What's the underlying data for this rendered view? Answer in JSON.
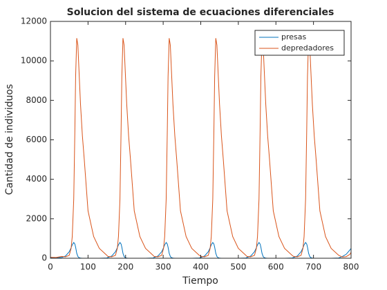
{
  "chart_data": {
    "type": "line",
    "title": "Solucion del sistema de ecuaciones diferenciales",
    "xlabel": "Tiempo",
    "ylabel": "Cantidad de individuos",
    "x": [
      0,
      15,
      30,
      40,
      50,
      55,
      58,
      62,
      65,
      67,
      70,
      73,
      76,
      80,
      85,
      90,
      100,
      115,
      130,
      150,
      153,
      163,
      173,
      178,
      181,
      185,
      188,
      190,
      193,
      196,
      199,
      203,
      208,
      213,
      223,
      238,
      253,
      273,
      276,
      286,
      296,
      301,
      304,
      308,
      311,
      313,
      316,
      319,
      322,
      326,
      331,
      336,
      346,
      361,
      376,
      396,
      400,
      410,
      420,
      425,
      428,
      432,
      435,
      437,
      440,
      443,
      446,
      450,
      455,
      460,
      470,
      485,
      500,
      520,
      523,
      533,
      543,
      548,
      551,
      555,
      558,
      560,
      563,
      566,
      569,
      573,
      578,
      583,
      593,
      608,
      623,
      643,
      647,
      657,
      667,
      672,
      675,
      679,
      682,
      684,
      687,
      690,
      693,
      697,
      702,
      707,
      717,
      732,
      747,
      767,
      777,
      787,
      797,
      800
    ],
    "series": [
      {
        "name": "presas",
        "color": "#0072bd",
        "values": [
          30,
          20,
          40,
          110,
          330,
          530,
          680,
          800,
          720,
          560,
          250,
          90,
          30,
          8,
          2,
          1,
          0,
          0,
          1,
          15,
          40,
          110,
          330,
          530,
          680,
          800,
          720,
          560,
          250,
          90,
          30,
          8,
          2,
          1,
          0,
          0,
          1,
          15,
          40,
          110,
          330,
          530,
          680,
          800,
          720,
          560,
          250,
          90,
          30,
          8,
          2,
          1,
          0,
          0,
          1,
          15,
          40,
          110,
          330,
          530,
          680,
          800,
          720,
          560,
          250,
          90,
          30,
          8,
          2,
          1,
          0,
          0,
          1,
          15,
          40,
          110,
          330,
          530,
          680,
          800,
          720,
          560,
          250,
          90,
          30,
          8,
          2,
          1,
          0,
          0,
          1,
          15,
          40,
          110,
          330,
          530,
          680,
          800,
          720,
          560,
          250,
          90,
          30,
          8,
          2,
          1,
          0,
          0,
          1,
          15,
          90,
          200,
          420,
          500
        ]
      },
      {
        "name": "depredadores",
        "color": "#d95319",
        "values": [
          50,
          40,
          90,
          70,
          150,
          500,
          1100,
          3000,
          6500,
          9200,
          11150,
          10800,
          9500,
          7800,
          6200,
          5000,
          2400,
          1100,
          500,
          150,
          90,
          70,
          150,
          500,
          1100,
          3000,
          6500,
          9200,
          11150,
          10800,
          9500,
          7800,
          6200,
          5000,
          2400,
          1100,
          500,
          150,
          90,
          70,
          150,
          500,
          1100,
          3000,
          6500,
          9200,
          11150,
          10800,
          9500,
          7800,
          6200,
          5000,
          2400,
          1100,
          500,
          150,
          90,
          70,
          150,
          500,
          1100,
          3000,
          6500,
          9200,
          11150,
          10800,
          9500,
          7800,
          6200,
          5000,
          2400,
          1100,
          500,
          150,
          90,
          70,
          150,
          500,
          1100,
          3000,
          6500,
          9200,
          11150,
          10800,
          9500,
          7800,
          6200,
          5000,
          2400,
          1100,
          500,
          150,
          90,
          70,
          150,
          500,
          1100,
          3000,
          6500,
          9200,
          11150,
          10800,
          9500,
          7800,
          6200,
          5000,
          2400,
          1100,
          500,
          150,
          60,
          80,
          200,
          300
        ]
      }
    ],
    "xlim": [
      0,
      800
    ],
    "xticks": [
      0,
      100,
      200,
      300,
      400,
      500,
      600,
      700,
      800
    ],
    "ylim": [
      0,
      12000
    ],
    "yticks": [
      0,
      2000,
      4000,
      6000,
      8000,
      10000,
      12000
    ],
    "grid": false,
    "legend": "northeast"
  }
}
